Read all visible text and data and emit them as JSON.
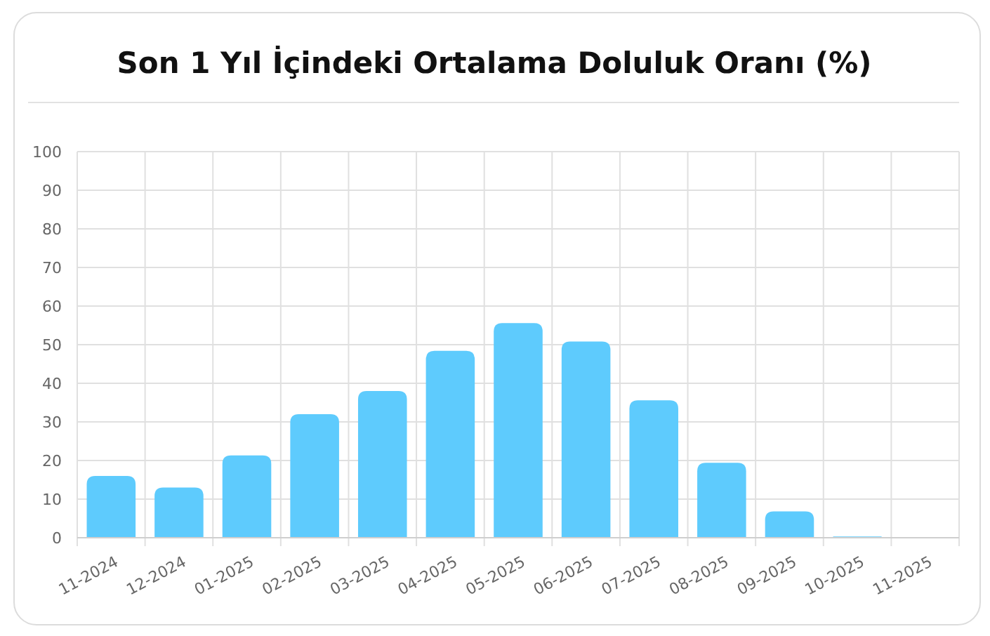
{
  "chart_data": {
    "type": "bar",
    "title": "Son 1 Yıl İçindeki Ortalama Doluluk Oranı (%)",
    "categories": [
      "11-2024",
      "12-2024",
      "01-2025",
      "02-2025",
      "03-2025",
      "04-2025",
      "05-2025",
      "06-2025",
      "07-2025",
      "08-2025",
      "09-2025",
      "10-2025",
      "11-2025"
    ],
    "values": [
      16,
      13,
      21.3,
      32,
      38,
      48.4,
      55.6,
      50.8,
      35.6,
      19.4,
      6.8,
      0.3,
      0
    ],
    "color": "#5ecbfd",
    "ylim": [
      0,
      100
    ],
    "yticks": [
      0,
      10,
      20,
      30,
      40,
      50,
      60,
      70,
      80,
      90,
      100
    ],
    "grid": true
  }
}
